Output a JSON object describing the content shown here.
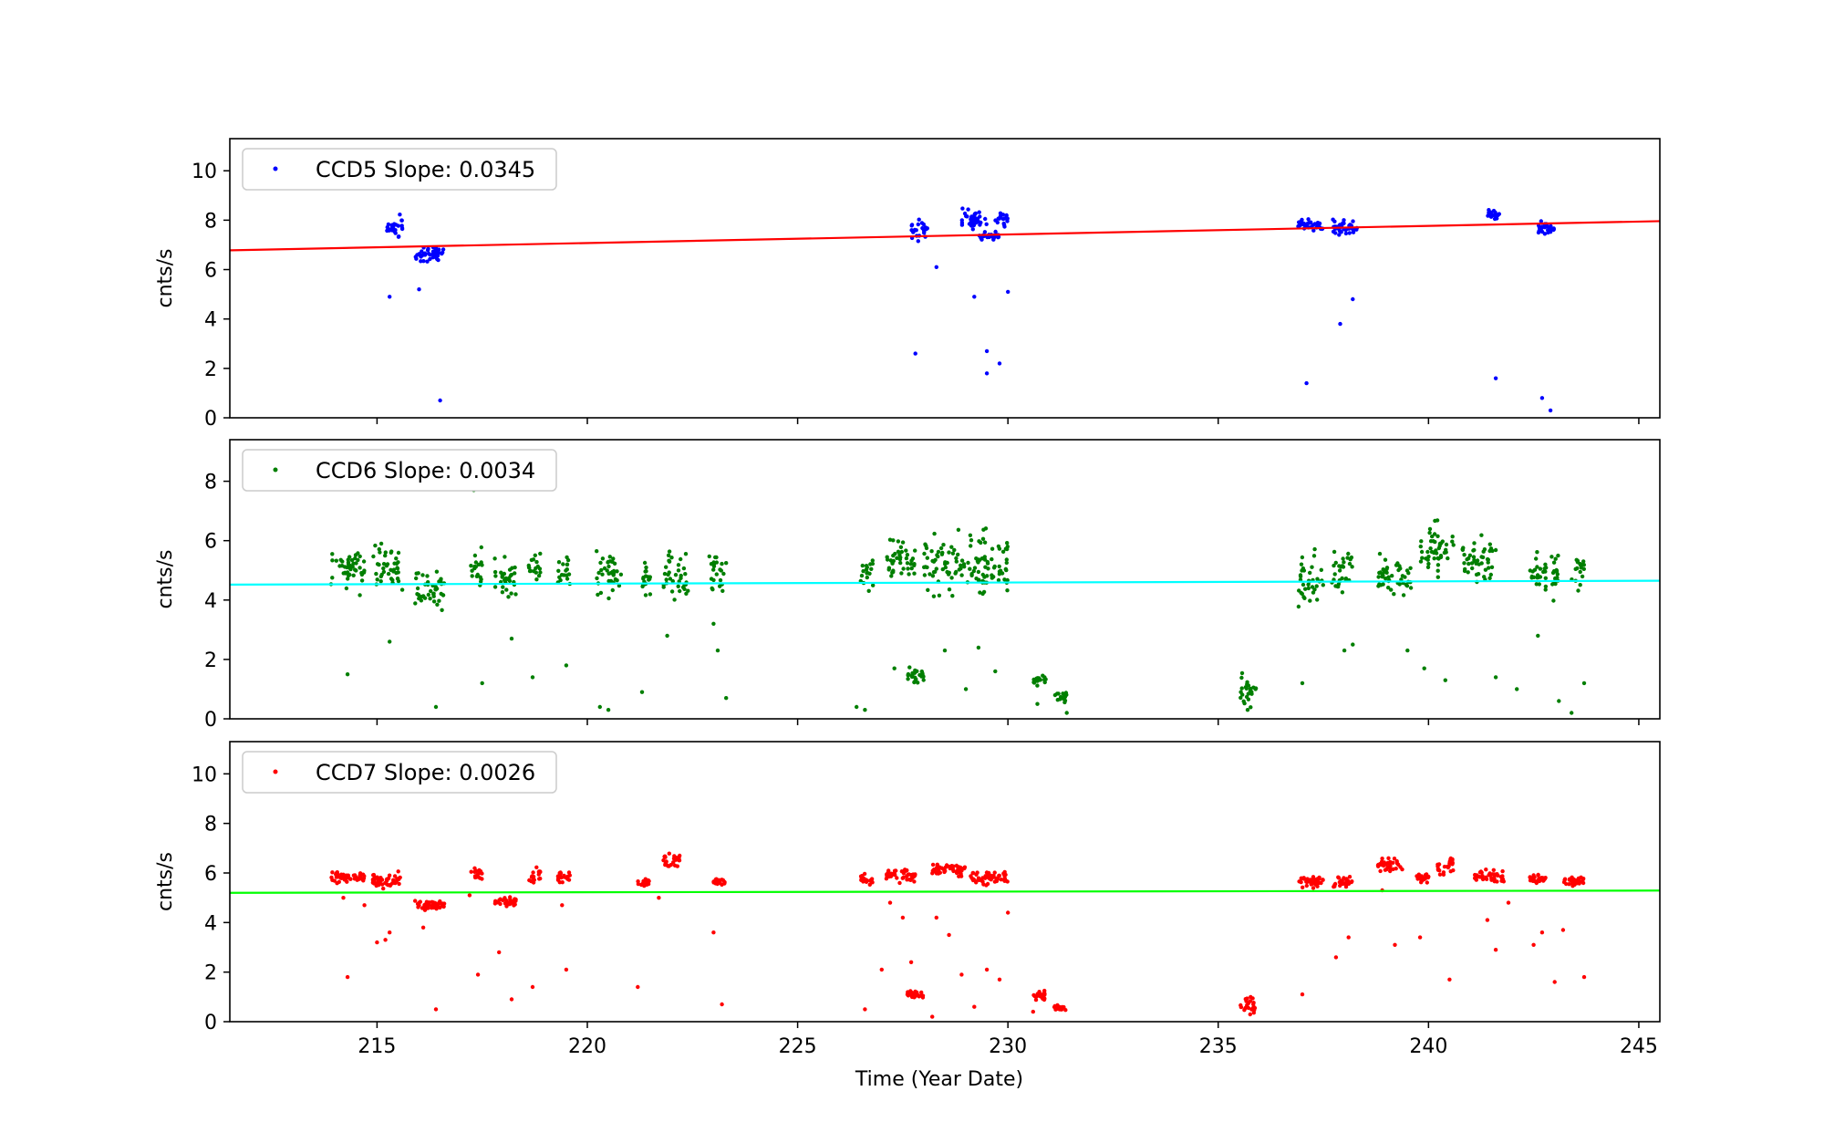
{
  "figure": {
    "xlabel": "Time (Year Date)",
    "xlim": [
      211.5,
      245.5
    ],
    "xticks": [
      215,
      220,
      225,
      230,
      235,
      240,
      245
    ]
  },
  "chart_data": [
    {
      "type": "scatter",
      "panel": "top",
      "ylabel": "cnts/s",
      "ylim": [
        0,
        11.3
      ],
      "yticks": [
        0,
        2,
        4,
        6,
        8,
        10
      ],
      "legend": {
        "label": "CCD5 Slope: 0.0345",
        "placement": "upper-left"
      },
      "point_color": "#0000ff",
      "fit_color": "#ff0000",
      "fit_line": {
        "x": [
          211.5,
          245.5
        ],
        "y": [
          6.78,
          7.96
        ]
      },
      "clusters": [
        {
          "x": [
            215.2,
            215.6
          ],
          "y": [
            7.2,
            8.3
          ]
        },
        {
          "x": [
            215.9,
            216.6
          ],
          "y": [
            6.2,
            7.1
          ]
        },
        {
          "x": [
            227.7,
            228.1
          ],
          "y": [
            7.1,
            8.2
          ]
        },
        {
          "x": [
            228.9,
            229.5
          ],
          "y": [
            7.4,
            8.6
          ]
        },
        {
          "x": [
            229.3,
            229.8
          ],
          "y": [
            7.1,
            7.6
          ]
        },
        {
          "x": [
            229.7,
            230.0
          ],
          "y": [
            7.6,
            8.6
          ]
        },
        {
          "x": [
            236.9,
            237.5
          ],
          "y": [
            7.4,
            8.2
          ]
        },
        {
          "x": [
            237.7,
            238.3
          ],
          "y": [
            7.3,
            8.1
          ]
        },
        {
          "x": [
            241.4,
            241.7
          ],
          "y": [
            7.8,
            8.6
          ]
        },
        {
          "x": [
            242.6,
            243.0
          ],
          "y": [
            7.3,
            8.0
          ]
        }
      ],
      "outliers": {
        "x": [
          215.3,
          216.0,
          216.5,
          227.8,
          228.3,
          229.2,
          229.5,
          229.5,
          229.8,
          230.0,
          237.1,
          237.9,
          238.2,
          241.6,
          242.7,
          242.9
        ],
        "y": [
          4.9,
          5.2,
          0.7,
          2.6,
          6.1,
          4.9,
          2.7,
          1.8,
          2.2,
          5.1,
          1.4,
          3.8,
          4.8,
          1.6,
          0.8,
          0.3
        ]
      }
    },
    {
      "type": "scatter",
      "panel": "middle",
      "ylabel": "cnts/s",
      "ylim": [
        0,
        9.4
      ],
      "yticks": [
        0,
        2,
        4,
        6,
        8
      ],
      "legend": {
        "label": "CCD6 Slope: 0.0034",
        "placement": "upper-left"
      },
      "point_color": "#007f00",
      "fit_color": "#00ffff",
      "fit_line": {
        "x": [
          211.5,
          245.5
        ],
        "y": [
          4.52,
          4.65
        ]
      },
      "clusters": [
        {
          "x": [
            213.9,
            214.7
          ],
          "y": [
            4.0,
            6.0
          ]
        },
        {
          "x": [
            214.9,
            215.6
          ],
          "y": [
            4.1,
            6.1
          ]
        },
        {
          "x": [
            215.9,
            216.6
          ],
          "y": [
            3.5,
            5.3
          ]
        },
        {
          "x": [
            217.2,
            217.5
          ],
          "y": [
            4.2,
            6.0
          ]
        },
        {
          "x": [
            217.8,
            218.3
          ],
          "y": [
            3.9,
            5.6
          ]
        },
        {
          "x": [
            218.6,
            218.9
          ],
          "y": [
            4.2,
            5.8
          ]
        },
        {
          "x": [
            219.3,
            219.6
          ],
          "y": [
            4.0,
            6.0
          ]
        },
        {
          "x": [
            220.2,
            220.8
          ],
          "y": [
            3.8,
            6.1
          ]
        },
        {
          "x": [
            221.3,
            221.5
          ],
          "y": [
            4.0,
            5.4
          ]
        },
        {
          "x": [
            221.8,
            222.4
          ],
          "y": [
            3.6,
            6.0
          ]
        },
        {
          "x": [
            222.9,
            223.3
          ],
          "y": [
            4.0,
            5.8
          ]
        },
        {
          "x": [
            226.5,
            226.8
          ],
          "y": [
            4.0,
            6.0
          ]
        },
        {
          "x": [
            227.1,
            227.8
          ],
          "y": [
            4.3,
            6.5
          ]
        },
        {
          "x": [
            227.6,
            228.0
          ],
          "y": [
            1.1,
            1.8
          ]
        },
        {
          "x": [
            228.0,
            229.5
          ],
          "y": [
            3.8,
            6.7
          ]
        },
        {
          "x": [
            229.3,
            230.0
          ],
          "y": [
            4.0,
            6.3
          ]
        },
        {
          "x": [
            230.6,
            230.9
          ],
          "y": [
            1.0,
            1.6
          ]
        },
        {
          "x": [
            231.1,
            231.4
          ],
          "y": [
            0.5,
            1.0
          ]
        },
        {
          "x": [
            235.5,
            235.9
          ],
          "y": [
            0.2,
            1.7
          ]
        },
        {
          "x": [
            236.9,
            237.5
          ],
          "y": [
            3.6,
            6.0
          ]
        },
        {
          "x": [
            237.7,
            238.2
          ],
          "y": [
            3.9,
            6.0
          ]
        },
        {
          "x": [
            238.8,
            239.6
          ],
          "y": [
            3.9,
            5.7
          ]
        },
        {
          "x": [
            239.8,
            240.6
          ],
          "y": [
            4.5,
            7.0
          ]
        },
        {
          "x": [
            240.8,
            241.6
          ],
          "y": [
            4.2,
            6.4
          ]
        },
        {
          "x": [
            242.4,
            242.8
          ],
          "y": [
            3.8,
            5.9
          ]
        },
        {
          "x": [
            242.9,
            243.1
          ],
          "y": [
            3.9,
            5.8
          ]
        },
        {
          "x": [
            243.4,
            243.7
          ],
          "y": [
            4.0,
            6.0
          ]
        }
      ],
      "outliers": {
        "x": [
          214.3,
          215.3,
          216.4,
          217.3,
          217.5,
          218.2,
          218.7,
          219.5,
          220.3,
          220.5,
          221.3,
          221.9,
          223.0,
          223.1,
          223.3,
          226.4,
          226.6,
          227.3,
          228.5,
          229.0,
          229.3,
          229.7,
          230.7,
          231.4,
          235.7,
          237.0,
          238.0,
          238.2,
          239.5,
          239.9,
          240.4,
          241.6,
          242.1,
          242.6,
          243.1,
          243.4,
          243.7
        ],
        "y": [
          1.5,
          2.6,
          0.4,
          7.7,
          1.2,
          2.7,
          1.4,
          1.8,
          0.4,
          0.3,
          0.9,
          2.8,
          3.2,
          2.3,
          0.7,
          0.4,
          0.3,
          1.7,
          2.3,
          1.0,
          2.4,
          1.6,
          0.5,
          0.2,
          0.3,
          1.2,
          2.3,
          2.5,
          2.3,
          1.7,
          1.3,
          1.4,
          1.0,
          2.8,
          0.6,
          0.2,
          1.2
        ]
      }
    },
    {
      "type": "scatter",
      "panel": "bottom",
      "ylabel": "cnts/s",
      "ylim": [
        0,
        11.3
      ],
      "yticks": [
        0,
        2,
        4,
        6,
        8,
        10
      ],
      "legend": {
        "label": "CCD7 Slope: 0.0026",
        "placement": "upper-left"
      },
      "point_color": "#ff0000",
      "fit_color": "#00ff00",
      "fit_line": {
        "x": [
          211.5,
          245.5
        ],
        "y": [
          5.2,
          5.29
        ]
      },
      "clusters": [
        {
          "x": [
            213.9,
            214.7
          ],
          "y": [
            5.5,
            6.1
          ]
        },
        {
          "x": [
            214.9,
            215.6
          ],
          "y": [
            5.3,
            6.1
          ]
        },
        {
          "x": [
            215.9,
            216.6
          ],
          "y": [
            4.4,
            5.0
          ]
        },
        {
          "x": [
            217.2,
            217.5
          ],
          "y": [
            5.6,
            6.4
          ]
        },
        {
          "x": [
            217.8,
            218.3
          ],
          "y": [
            4.6,
            5.1
          ]
        },
        {
          "x": [
            218.6,
            218.9
          ],
          "y": [
            5.5,
            6.3
          ]
        },
        {
          "x": [
            219.3,
            219.6
          ],
          "y": [
            5.5,
            6.2
          ]
        },
        {
          "x": [
            221.2,
            221.5
          ],
          "y": [
            5.4,
            5.9
          ]
        },
        {
          "x": [
            221.8,
            222.2
          ],
          "y": [
            6.1,
            6.9
          ]
        },
        {
          "x": [
            223.0,
            223.3
          ],
          "y": [
            5.4,
            5.9
          ]
        },
        {
          "x": [
            226.5,
            226.8
          ],
          "y": [
            5.4,
            6.0
          ]
        },
        {
          "x": [
            227.1,
            227.8
          ],
          "y": [
            5.5,
            6.3
          ]
        },
        {
          "x": [
            227.6,
            228.0
          ],
          "y": [
            0.9,
            1.3
          ]
        },
        {
          "x": [
            228.2,
            229.0
          ],
          "y": [
            5.8,
            6.5
          ]
        },
        {
          "x": [
            229.1,
            230.0
          ],
          "y": [
            5.4,
            6.2
          ]
        },
        {
          "x": [
            230.6,
            230.9
          ],
          "y": [
            0.8,
            1.3
          ]
        },
        {
          "x": [
            231.1,
            231.4
          ],
          "y": [
            0.4,
            0.7
          ]
        },
        {
          "x": [
            235.5,
            235.9
          ],
          "y": [
            0.1,
            1.3
          ]
        },
        {
          "x": [
            236.9,
            237.5
          ],
          "y": [
            5.3,
            6.0
          ]
        },
        {
          "x": [
            237.7,
            238.2
          ],
          "y": [
            5.3,
            6.0
          ]
        },
        {
          "x": [
            238.8,
            239.4
          ],
          "y": [
            5.9,
            6.8
          ]
        },
        {
          "x": [
            239.7,
            240.0
          ],
          "y": [
            5.5,
            6.1
          ]
        },
        {
          "x": [
            240.2,
            240.6
          ],
          "y": [
            5.8,
            6.9
          ]
        },
        {
          "x": [
            241.1,
            241.8
          ],
          "y": [
            5.5,
            6.2
          ]
        },
        {
          "x": [
            242.4,
            242.8
          ],
          "y": [
            5.5,
            6.0
          ]
        },
        {
          "x": [
            243.2,
            243.7
          ],
          "y": [
            5.4,
            6.0
          ]
        }
      ],
      "outliers": {
        "x": [
          214.2,
          214.3,
          214.7,
          215.0,
          215.2,
          215.3,
          216.4,
          216.1,
          217.2,
          217.4,
          217.9,
          218.2,
          218.7,
          219.4,
          219.5,
          221.2,
          221.7,
          223.0,
          223.2,
          226.6,
          227.0,
          227.2,
          227.5,
          227.7,
          228.2,
          228.3,
          228.6,
          228.9,
          229.2,
          229.5,
          229.8,
          230.0,
          230.6,
          237.0,
          237.8,
          238.1,
          238.9,
          239.2,
          239.8,
          240.5,
          241.4,
          241.6,
          241.9,
          242.5,
          242.7,
          243.0,
          243.2,
          243.7
        ],
        "y": [
          5.0,
          1.8,
          4.7,
          3.2,
          3.3,
          3.6,
          0.5,
          3.8,
          5.1,
          1.9,
          2.8,
          0.9,
          1.4,
          4.7,
          2.1,
          1.4,
          5.0,
          3.6,
          0.7,
          0.5,
          2.1,
          4.8,
          4.2,
          2.4,
          0.2,
          4.2,
          3.5,
          1.9,
          0.6,
          2.1,
          1.7,
          4.4,
          0.4,
          1.1,
          2.6,
          3.4,
          5.3,
          3.1,
          3.4,
          1.7,
          4.1,
          2.9,
          4.8,
          3.1,
          3.6,
          1.6,
          3.7,
          1.8
        ]
      }
    }
  ]
}
